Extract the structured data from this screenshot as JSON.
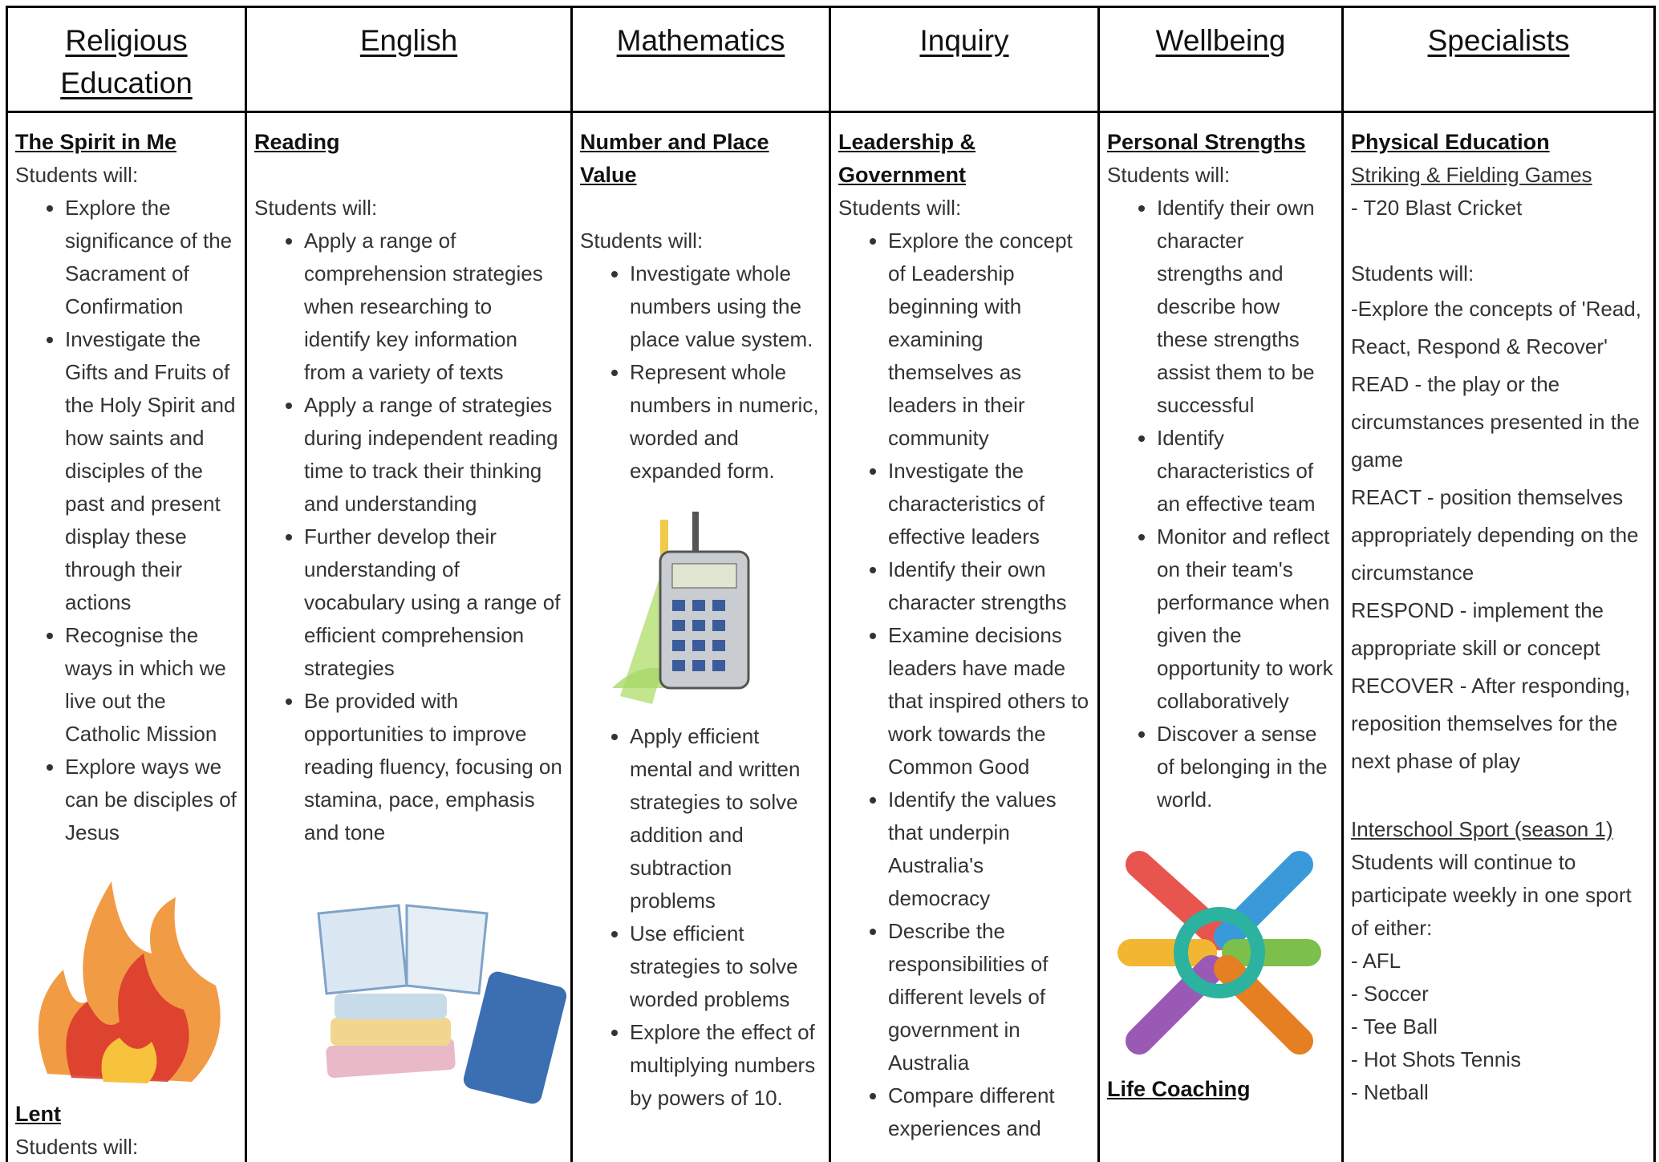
{
  "table": {
    "headers": [
      "Religious Education",
      "English",
      "Mathematics",
      "Inquiry",
      "Wellbeing",
      "Specialists"
    ],
    "columns": [
      {
        "units": [
          {
            "title": "The Spirit in Me",
            "intro": "Students will:",
            "points": [
              "Explore the significance of the Sacrament of Confirmation",
              "Investigate the Gifts and Fruits of the Holy Spirit and how saints and disciples of the past and present display these through their actions",
              "Recognise the ways in which we live out the Catholic Mission",
              "Explore ways we can be disciples of Jesus"
            ]
          },
          {
            "title": "Lent",
            "intro": "Students will:"
          }
        ]
      },
      {
        "units": [
          {
            "title": "Reading",
            "intro": "Students will:",
            "points": [
              "Apply a range of comprehension strategies when researching to identify key information from a variety of texts",
              "Apply a range of strategies during independent reading time to track their thinking and understanding",
              "Further develop their understanding of vocabulary using a range of efficient comprehension strategies",
              "Be provided with opportunities to improve reading fluency, focusing on stamina, pace, emphasis and tone"
            ]
          }
        ]
      },
      {
        "units": [
          {
            "title": "Number and Place Value",
            "intro": "Students will:",
            "points": [
              "Investigate whole numbers using the place value system.",
              "Represent whole numbers in numeric, worded and expanded form."
            ],
            "more_points": [
              "Apply efficient mental and written strategies to solve addition and subtraction problems",
              "Use efficient strategies to solve worded problems",
              "Explore the effect of multiplying numbers by powers of 10."
            ]
          }
        ]
      },
      {
        "units": [
          {
            "title": "Leadership & Government",
            "intro": "Students will:",
            "points": [
              "Explore the concept of Leadership beginning with examining themselves as leaders in their community",
              "Investigate the characteristics of effective leaders",
              "Identify their own character strengths",
              "Examine decisions leaders have made that inspired others to work towards the Common Good",
              "Identify the values that underpin Australia's democracy",
              "Describe the responsibilities of different levels of government in Australia",
              "Compare different experiences and"
            ]
          }
        ]
      },
      {
        "units": [
          {
            "title": "Personal Strengths",
            "intro": "Students will:",
            "points": [
              "Identify their own character strengths and describe how these strengths assist them to be successful",
              "Identify characteristics of an effective team",
              "Monitor and reflect on their team's performance when given the opportunity to work collaboratively",
              "Discover a sense of belonging in the world."
            ]
          },
          {
            "title": "Life Coaching"
          }
        ]
      },
      {
        "units": [
          {
            "title": "Physical Education",
            "subtitle": "Striking & Fielding Games",
            "activity": "- T20 Blast Cricket",
            "intro": "Students will:",
            "lines": [
              "-Explore the concepts of 'Read, React, Respond & Recover'",
              "READ - the play or the circumstances presented in the game",
              "REACT - position themselves appropriately depending on the circumstance",
              "RESPOND - implement the appropriate skill or concept",
              "RECOVER - After responding, reposition themselves for the next phase of play"
            ]
          },
          {
            "title": "Interschool Sport (season 1)",
            "lines": [
              "Students will continue to participate weekly in one sport of either:",
              "- AFL",
              "- Soccer",
              "- Tee Ball",
              "- Hot Shots Tennis",
              "- Netball"
            ]
          }
        ]
      }
    ]
  }
}
